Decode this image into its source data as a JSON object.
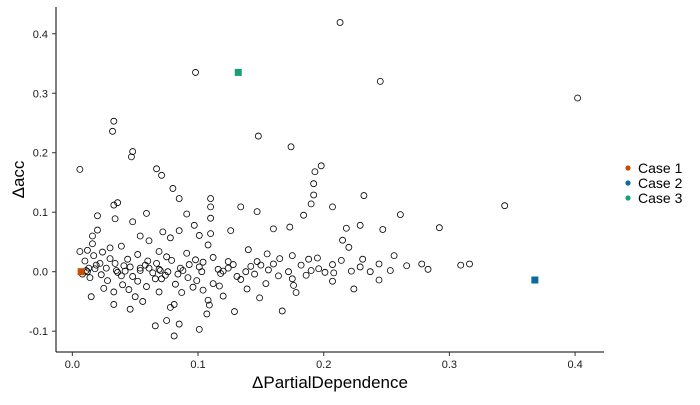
{
  "chart_data": {
    "type": "scatter",
    "xlabel": "ΔPartialDependence",
    "ylabel": "Δacc",
    "xlim": [
      -0.013,
      0.423
    ],
    "ylim": [
      -0.135,
      0.445
    ],
    "x_ticks": [
      0,
      0.1,
      0.2,
      0.3,
      0.4
    ],
    "x_tick_labels": [
      "0.0",
      "0.1",
      "0.2",
      "0.3",
      "0.4"
    ],
    "y_ticks": [
      -0.1,
      0,
      0.1,
      0.2,
      0.3,
      0.4
    ],
    "y_tick_labels": [
      "-0.1",
      "0.0",
      "0.1",
      "0.2",
      "0.3",
      "0.4"
    ],
    "grid": false,
    "legend_position": "right",
    "series": [
      {
        "marker": "hollow-circle",
        "color": "#000000",
        "points": [
          [
            0.213,
            0.419
          ],
          [
            0.098,
            0.335
          ],
          [
            0.245,
            0.32
          ],
          [
            0.402,
            0.292
          ],
          [
            0.033,
            0.253
          ],
          [
            0.032,
            0.236
          ],
          [
            0.148,
            0.228
          ],
          [
            0.174,
            0.21
          ],
          [
            0.048,
            0.202
          ],
          [
            0.047,
            0.193
          ],
          [
            0.006,
            0.172
          ],
          [
            0.067,
            0.173
          ],
          [
            0.198,
            0.178
          ],
          [
            0.071,
            0.162
          ],
          [
            0.193,
            0.168
          ],
          [
            0.192,
            0.148
          ],
          [
            0.08,
            0.14
          ],
          [
            0.11,
            0.123
          ],
          [
            0.192,
            0.129
          ],
          [
            0.232,
            0.128
          ],
          [
            0.085,
            0.123
          ],
          [
            0.19,
            0.114
          ],
          [
            0.033,
            0.112
          ],
          [
            0.036,
            0.116
          ],
          [
            0.134,
            0.109
          ],
          [
            0.344,
            0.111
          ],
          [
            0.207,
            0.109
          ],
          [
            0.147,
            0.101
          ],
          [
            0.11,
            0.109
          ],
          [
            0.059,
            0.098
          ],
          [
            0.02,
            0.094
          ],
          [
            0.261,
            0.096
          ],
          [
            0.091,
            0.097
          ],
          [
            0.184,
            0.095
          ],
          [
            0.11,
            0.09
          ],
          [
            0.034,
            0.089
          ],
          [
            0.048,
            0.084
          ],
          [
            0.097,
            0.078
          ],
          [
            0.229,
            0.078
          ],
          [
            0.02,
            0.07
          ],
          [
            0.085,
            0.069
          ],
          [
            0.072,
            0.067
          ],
          [
            0.126,
            0.069
          ],
          [
            0.173,
            0.075
          ],
          [
            0.16,
            0.072
          ],
          [
            0.218,
            0.073
          ],
          [
            0.292,
            0.074
          ],
          [
            0.247,
            0.071
          ],
          [
            0.11,
            0.064
          ],
          [
            0.101,
            0.061
          ],
          [
            0.054,
            0.06
          ],
          [
            0.016,
            0.06
          ],
          [
            0.078,
            0.057
          ],
          [
            0.061,
            0.052
          ],
          [
            0.215,
            0.053
          ],
          [
            0.039,
            0.043
          ],
          [
            0.016,
            0.047
          ],
          [
            0.108,
            0.045
          ],
          [
            0.14,
            0.037
          ],
          [
            0.012,
            0.036
          ],
          [
            0.069,
            0.034
          ],
          [
            0.024,
            0.033
          ],
          [
            0.22,
            0.041
          ],
          [
            0.006,
            0.034
          ],
          [
            0.175,
            0.027
          ],
          [
            0.052,
            0.029
          ],
          [
            0.091,
            0.031
          ],
          [
            0.256,
            0.027
          ],
          [
            0.195,
            0.023
          ],
          [
            0.231,
            0.021
          ],
          [
            0.03,
            0.022
          ],
          [
            0.075,
            0.025
          ],
          [
            0.112,
            0.024
          ],
          [
            0.01,
            0.018
          ],
          [
            0.16,
            0.013
          ],
          [
            0.034,
            0.014
          ],
          [
            0.128,
            0.012
          ],
          [
            0.067,
            0.014
          ],
          [
            0.266,
            0.01
          ],
          [
            0.207,
            0.012
          ],
          [
            0.309,
            0.011
          ],
          [
            0.019,
            0.011
          ],
          [
            0.278,
            0.013
          ],
          [
            0.244,
            0.013
          ],
          [
            0.041,
            0.01
          ],
          [
            0.104,
            0.016
          ],
          [
            0.15,
            0.011
          ],
          [
            0.229,
            0.008
          ],
          [
            0.054,
            0.006
          ],
          [
            0.018,
            0.005
          ],
          [
            0.086,
            0.006
          ],
          [
            0.196,
            0.005
          ],
          [
            0.124,
            0.006
          ],
          [
            0.069,
            0.004
          ],
          [
            0.011,
            0.002
          ],
          [
            0.283,
            0.004
          ],
          [
            0.156,
            0.003
          ],
          [
            0.042,
            0.001
          ],
          [
            0.076,
            0.0
          ],
          [
            0.138,
            0.0
          ],
          [
            0.222,
            0.001
          ],
          [
            0.103,
            0.0
          ],
          [
            0.012,
            0.0
          ],
          [
            0.054,
            0.002
          ],
          [
            0.172,
            0.0
          ],
          [
            0.084,
            -0.004
          ],
          [
            0.036,
            -0.001
          ],
          [
            0.064,
            -0.002
          ],
          [
            0.208,
            -0.002
          ],
          [
            0.118,
            -0.003
          ],
          [
            0.145,
            -0.004
          ],
          [
            0.023,
            -0.005
          ],
          [
            0.048,
            -0.008
          ],
          [
            0.092,
            -0.01
          ],
          [
            0.186,
            -0.006
          ],
          [
            0.175,
            -0.012
          ],
          [
            0.134,
            -0.013
          ],
          [
            0.066,
            -0.012
          ],
          [
            0.028,
            -0.015
          ],
          [
            0.207,
            -0.016
          ],
          [
            0.112,
            -0.02
          ],
          [
            0.154,
            -0.02
          ],
          [
            0.082,
            -0.021
          ],
          [
            0.244,
            -0.014
          ],
          [
            0.04,
            -0.022
          ],
          [
            0.096,
            -0.026
          ],
          [
            0.176,
            -0.023
          ],
          [
            0.059,
            -0.025
          ],
          [
            0.139,
            -0.029
          ],
          [
            0.104,
            -0.031
          ],
          [
            0.224,
            -0.029
          ],
          [
            0.069,
            -0.034
          ],
          [
            0.033,
            -0.034
          ],
          [
            0.087,
            -0.035
          ],
          [
            0.178,
            -0.035
          ],
          [
            0.12,
            -0.041
          ],
          [
            0.015,
            -0.042
          ],
          [
            0.05,
            -0.042
          ],
          [
            0.149,
            -0.044
          ],
          [
            0.108,
            -0.048
          ],
          [
            0.056,
            -0.05
          ],
          [
            0.033,
            -0.055
          ],
          [
            0.081,
            -0.055
          ],
          [
            0.109,
            -0.056
          ],
          [
            0.078,
            -0.06
          ],
          [
            0.046,
            -0.063
          ],
          [
            0.129,
            -0.067
          ],
          [
            0.167,
            -0.066
          ],
          [
            0.107,
            -0.071
          ],
          [
            0.075,
            -0.082
          ],
          [
            0.085,
            -0.088
          ],
          [
            0.066,
            -0.091
          ],
          [
            0.101,
            -0.097
          ],
          [
            0.081,
            -0.108
          ],
          [
            0.017,
            0.027
          ],
          [
            0.027,
            0.006
          ],
          [
            0.06,
            0.018
          ],
          [
            0.098,
            0.02
          ],
          [
            0.155,
            0.03
          ],
          [
            0.19,
            0.002
          ],
          [
            0.035,
            0.002
          ],
          [
            0.014,
            -0.01
          ],
          [
            0.124,
            0.017
          ],
          [
            0.237,
            0.0
          ],
          [
            0.164,
            -0.007
          ],
          [
            0.045,
            -0.03
          ],
          [
            0.093,
            0.012
          ],
          [
            0.071,
            -0.012
          ],
          [
            0.253,
            0.002
          ],
          [
            0.316,
            0.013
          ],
          [
            0.201,
            -0.001
          ],
          [
            0.116,
            0.004
          ],
          [
            0.058,
            0.011
          ],
          [
            0.147,
            0.017
          ],
          [
            0.022,
            0.014
          ],
          [
            0.182,
            0.011
          ],
          [
            0.039,
            -0.007
          ],
          [
            0.088,
            0.002
          ],
          [
            0.013,
            0.006
          ],
          [
            0.131,
            -0.008
          ],
          [
            0.079,
            0.019
          ],
          [
            0.025,
            -0.028
          ],
          [
            0.052,
            -0.016
          ],
          [
            0.061,
            0.006
          ],
          [
            0.142,
            0.009
          ],
          [
            0.099,
            -0.015
          ],
          [
            0.165,
            0.022
          ],
          [
            0.214,
            0.019
          ],
          [
            0.03,
            0.04
          ],
          [
            0.044,
            0.021
          ],
          [
            0.117,
            -0.024
          ],
          [
            0.07,
            0.002
          ],
          [
            0.188,
            0.021
          ],
          [
            0.008,
            -0.004
          ],
          [
            0.101,
            0.008
          ],
          [
            0.12,
            0.001
          ],
          [
            0.046,
            0.008
          ],
          [
            0.074,
            -0.006
          ]
        ]
      },
      {
        "name": "Case 1",
        "marker": "filled-square",
        "color": "#CC4C02",
        "points": [
          [
            0.007,
            0.0
          ]
        ]
      },
      {
        "name": "Case 2",
        "marker": "filled-square",
        "color": "#0C6AA0",
        "points": [
          [
            0.368,
            -0.014
          ]
        ]
      },
      {
        "name": "Case 3",
        "marker": "filled-square",
        "color": "#1B9E77",
        "points": [
          [
            0.132,
            0.335
          ]
        ]
      }
    ],
    "legend": [
      {
        "label": "Case 1",
        "color": "#CC4C02"
      },
      {
        "label": "Case 2",
        "color": "#0C6AA0"
      },
      {
        "label": "Case 3",
        "color": "#1B9E77"
      }
    ]
  }
}
